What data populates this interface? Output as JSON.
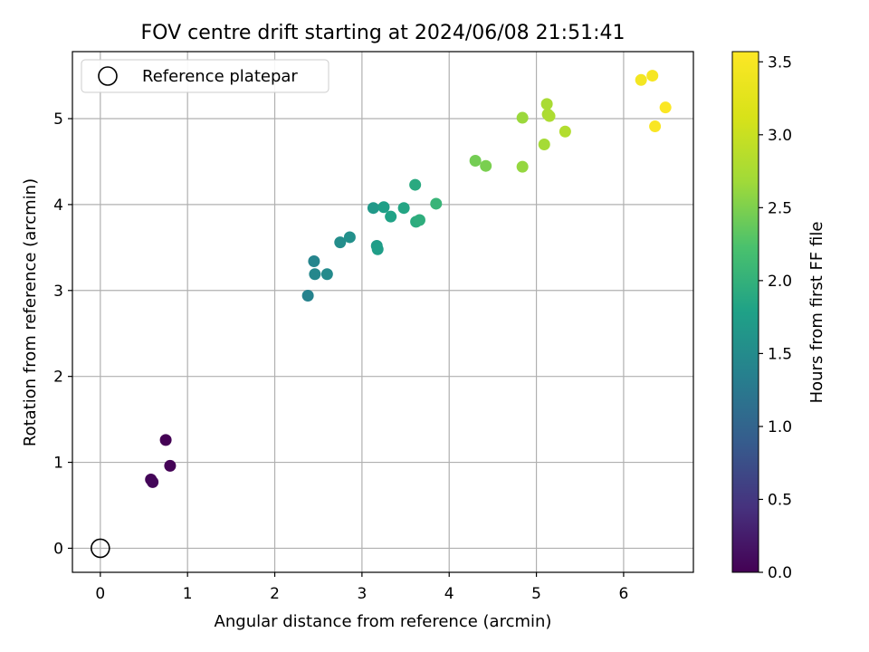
{
  "chart_data": {
    "type": "scatter",
    "title": "FOV centre drift starting at 2024/06/08 21:51:41",
    "xlabel": "Angular distance from reference (arcmin)",
    "ylabel": "Rotation from reference (arcmin)",
    "xlim": [
      -0.32,
      6.8
    ],
    "ylim": [
      -0.28,
      5.78
    ],
    "xticks": [
      0,
      1,
      2,
      3,
      4,
      5,
      6
    ],
    "yticks": [
      0,
      1,
      2,
      3,
      4,
      5
    ],
    "grid": true,
    "legend": {
      "label": "Reference platepar",
      "placement": "top-left"
    },
    "reference_point": {
      "x": 0,
      "y": 0
    },
    "colorbar": {
      "label": "Hours from first FF file",
      "range": [
        0,
        3.57
      ],
      "ticks": [
        "0.0",
        "0.5",
        "1.0",
        "1.5",
        "2.0",
        "2.5",
        "3.0",
        "3.5"
      ],
      "colormap": "viridis"
    },
    "series": [
      {
        "points": [
          {
            "x": 0.75,
            "y": 1.26,
            "h": 0.0
          },
          {
            "x": 0.8,
            "y": 0.96,
            "h": 0.02
          },
          {
            "x": 0.58,
            "y": 0.8,
            "h": 0.04
          },
          {
            "x": 0.6,
            "y": 0.77,
            "h": 0.05
          },
          {
            "x": 2.38,
            "y": 2.94,
            "h": 1.38
          },
          {
            "x": 2.45,
            "y": 3.34,
            "h": 1.42
          },
          {
            "x": 2.46,
            "y": 3.19,
            "h": 1.45
          },
          {
            "x": 2.6,
            "y": 3.19,
            "h": 1.48
          },
          {
            "x": 2.75,
            "y": 3.56,
            "h": 1.52
          },
          {
            "x": 2.86,
            "y": 3.62,
            "h": 1.56
          },
          {
            "x": 3.13,
            "y": 3.96,
            "h": 1.68
          },
          {
            "x": 3.17,
            "y": 3.52,
            "h": 1.72
          },
          {
            "x": 3.18,
            "y": 3.48,
            "h": 1.74
          },
          {
            "x": 3.25,
            "y": 3.97,
            "h": 1.76
          },
          {
            "x": 3.33,
            "y": 3.86,
            "h": 1.8
          },
          {
            "x": 3.48,
            "y": 3.96,
            "h": 1.84
          },
          {
            "x": 3.61,
            "y": 4.23,
            "h": 1.9
          },
          {
            "x": 3.62,
            "y": 3.8,
            "h": 1.92
          },
          {
            "x": 3.66,
            "y": 3.82,
            "h": 1.95
          },
          {
            "x": 3.85,
            "y": 4.01,
            "h": 2.05
          },
          {
            "x": 4.3,
            "y": 4.51,
            "h": 2.45
          },
          {
            "x": 4.42,
            "y": 4.45,
            "h": 2.48
          },
          {
            "x": 4.84,
            "y": 4.44,
            "h": 2.62
          },
          {
            "x": 4.84,
            "y": 5.01,
            "h": 2.65
          },
          {
            "x": 5.09,
            "y": 4.7,
            "h": 2.72
          },
          {
            "x": 5.12,
            "y": 5.17,
            "h": 2.75
          },
          {
            "x": 5.13,
            "y": 5.05,
            "h": 2.76
          },
          {
            "x": 5.15,
            "y": 5.03,
            "h": 2.78
          },
          {
            "x": 5.33,
            "y": 4.85,
            "h": 2.82
          },
          {
            "x": 6.2,
            "y": 5.45,
            "h": 3.45
          },
          {
            "x": 6.33,
            "y": 5.5,
            "h": 3.48
          },
          {
            "x": 6.36,
            "y": 4.91,
            "h": 3.52
          },
          {
            "x": 6.48,
            "y": 5.13,
            "h": 3.55
          }
        ]
      }
    ]
  }
}
